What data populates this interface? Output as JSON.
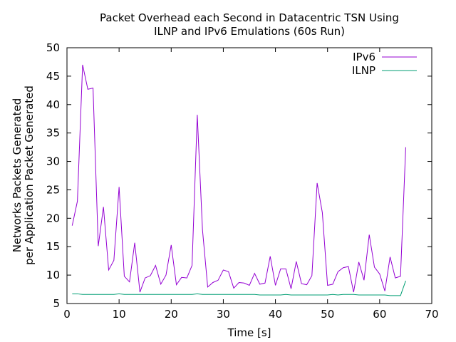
{
  "chart_data": {
    "type": "line",
    "title_lines": [
      "Packet Overhead each Second in Datacentric TSN Using",
      "ILNP and IPv6 Emulations (60s Run)"
    ],
    "xlabel": "Time [s]",
    "ylabel_lines": [
      "Networks Packets Generated",
      "per Application Packet Generated"
    ],
    "xlim": [
      0,
      70
    ],
    "ylim": [
      5,
      50
    ],
    "xticks": [
      0,
      10,
      20,
      30,
      40,
      50,
      60,
      70
    ],
    "yticks": [
      5,
      10,
      15,
      20,
      25,
      30,
      35,
      40,
      45,
      50
    ],
    "grid": false,
    "legend_position": "top-right",
    "series": [
      {
        "name": "IPv6",
        "color": "#9400d3",
        "x": [
          1,
          2,
          3,
          4,
          5,
          6,
          7,
          8,
          9,
          10,
          11,
          12,
          13,
          14,
          15,
          16,
          17,
          18,
          19,
          20,
          21,
          22,
          23,
          24,
          25,
          26,
          27,
          28,
          29,
          30,
          31,
          32,
          33,
          34,
          35,
          36,
          37,
          38,
          39,
          40,
          41,
          42,
          43,
          44,
          45,
          46,
          47,
          48,
          49,
          50,
          51,
          52,
          53,
          54,
          55,
          56,
          57,
          58,
          59,
          60,
          61,
          62,
          63,
          64,
          65
        ],
        "y": [
          18.7,
          23.0,
          47.0,
          42.7,
          42.9,
          15.1,
          22.0,
          10.9,
          12.6,
          25.5,
          9.8,
          8.8,
          15.7,
          7.0,
          9.5,
          9.9,
          11.7,
          8.4,
          10.0,
          15.3,
          8.3,
          9.6,
          9.5,
          11.7,
          38.2,
          18.0,
          7.9,
          8.7,
          9.1,
          10.9,
          10.6,
          7.7,
          8.7,
          8.6,
          8.2,
          10.3,
          8.4,
          8.6,
          13.3,
          8.2,
          11.1,
          11.1,
          7.6,
          12.4,
          8.5,
          8.3,
          9.9,
          26.2,
          21.0,
          8.2,
          8.4,
          10.6,
          11.3,
          11.5,
          7.0,
          12.3,
          9.1,
          17.1,
          11.4,
          10.2,
          7.2,
          13.2,
          9.5,
          9.8,
          32.5
        ]
      },
      {
        "name": "ILNP",
        "color": "#009e73",
        "x": [
          1,
          2,
          3,
          4,
          5,
          6,
          7,
          8,
          9,
          10,
          11,
          12,
          13,
          14,
          15,
          16,
          17,
          18,
          19,
          20,
          21,
          22,
          23,
          24,
          25,
          26,
          27,
          28,
          29,
          30,
          31,
          32,
          33,
          34,
          35,
          36,
          37,
          38,
          39,
          40,
          41,
          42,
          43,
          44,
          45,
          46,
          47,
          48,
          49,
          50,
          51,
          52,
          53,
          54,
          55,
          56,
          57,
          58,
          59,
          60,
          61,
          62,
          63,
          64,
          65
        ],
        "y": [
          6.7,
          6.7,
          6.6,
          6.6,
          6.6,
          6.6,
          6.6,
          6.6,
          6.6,
          6.7,
          6.6,
          6.6,
          6.6,
          6.6,
          6.6,
          6.6,
          6.6,
          6.6,
          6.6,
          6.6,
          6.6,
          6.6,
          6.6,
          6.6,
          6.7,
          6.6,
          6.6,
          6.6,
          6.6,
          6.6,
          6.6,
          6.6,
          6.6,
          6.6,
          6.6,
          6.6,
          6.5,
          6.5,
          6.5,
          6.5,
          6.5,
          6.6,
          6.5,
          6.5,
          6.5,
          6.5,
          6.5,
          6.5,
          6.5,
          6.5,
          6.6,
          6.5,
          6.6,
          6.6,
          6.6,
          6.5,
          6.5,
          6.5,
          6.5,
          6.5,
          6.5,
          6.4,
          6.4,
          6.4,
          9.0
        ]
      }
    ]
  }
}
